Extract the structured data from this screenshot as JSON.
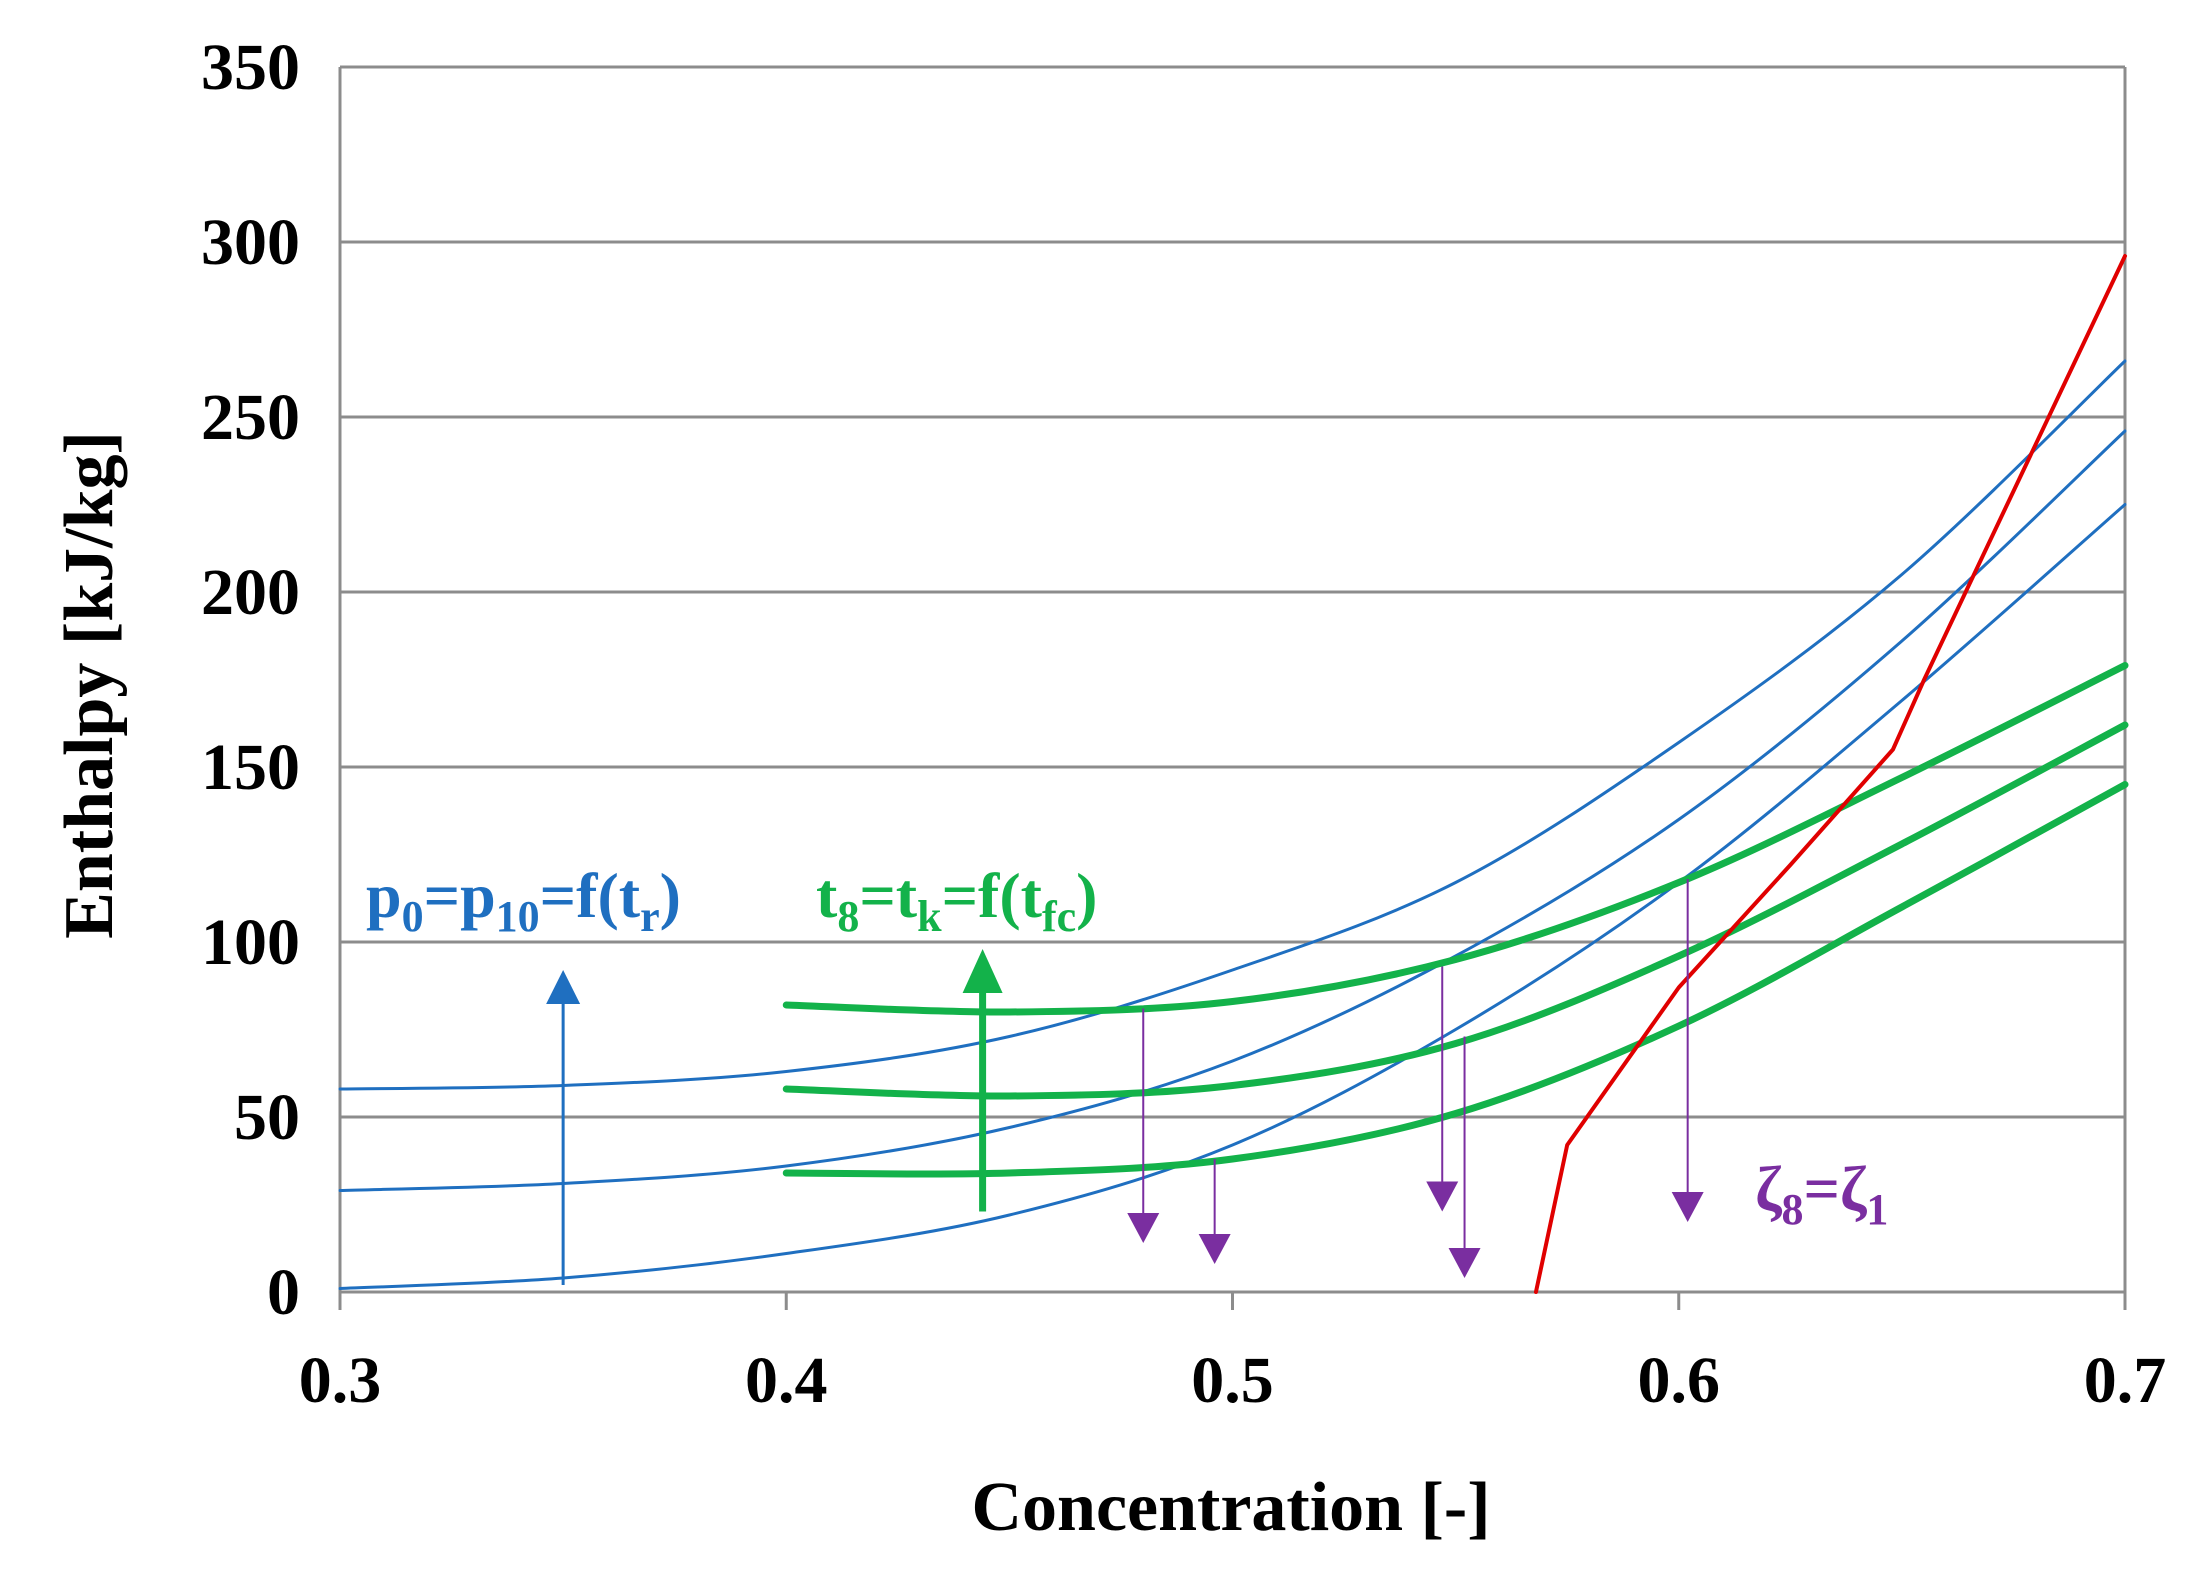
{
  "chart_data": {
    "type": "line",
    "title": "",
    "xlabel": "Concentration [-]",
    "ylabel": "Enthalpy [kJ/kg]",
    "xlim": [
      0.3,
      0.7
    ],
    "ylim": [
      0,
      350
    ],
    "x_ticks": [
      {
        "value": 0.3,
        "label": "0.3"
      },
      {
        "value": 0.4,
        "label": "0.4"
      },
      {
        "value": 0.5,
        "label": "0.5"
      },
      {
        "value": 0.6,
        "label": "0.6"
      },
      {
        "value": 0.7,
        "label": "0.7"
      }
    ],
    "y_ticks": [
      {
        "value": 0,
        "label": "0"
      },
      {
        "value": 50,
        "label": "50"
      },
      {
        "value": 100,
        "label": "100"
      },
      {
        "value": 150,
        "label": "150"
      },
      {
        "value": 200,
        "label": "200"
      },
      {
        "value": 250,
        "label": "250"
      },
      {
        "value": 300,
        "label": "300"
      },
      {
        "value": 350,
        "label": "350"
      }
    ],
    "grid": "horizontal",
    "colors": {
      "blue": "#1f6fc0",
      "green": "#13b24a",
      "red": "#e00000",
      "purple": "#7a2ea0",
      "grid": "#8c8c8c"
    },
    "series": [
      {
        "name": "blue-1",
        "color": "#1f6fc0",
        "width": 3,
        "x": [
          0.3,
          0.35,
          0.4,
          0.45,
          0.5,
          0.55,
          0.6,
          0.65,
          0.7
        ],
        "y": [
          58,
          59,
          63,
          73,
          92,
          117,
          157,
          205,
          266
        ]
      },
      {
        "name": "blue-2",
        "color": "#1f6fc0",
        "width": 3,
        "x": [
          0.3,
          0.35,
          0.4,
          0.45,
          0.5,
          0.55,
          0.6,
          0.65,
          0.7
        ],
        "y": [
          29,
          31,
          36,
          47,
          66,
          96,
          135,
          186,
          246
        ]
      },
      {
        "name": "blue-3",
        "color": "#1f6fc0",
        "width": 3,
        "x": [
          0.3,
          0.35,
          0.4,
          0.45,
          0.5,
          0.55,
          0.6,
          0.65,
          0.7
        ],
        "y": [
          1,
          4,
          11,
          22,
          42,
          75,
          117,
          169,
          225
        ]
      },
      {
        "name": "green-1",
        "color": "#13b24a",
        "width": 7,
        "x": [
          0.4,
          0.45,
          0.5,
          0.55,
          0.6,
          0.65,
          0.7
        ],
        "y": [
          82,
          80,
          83,
          95,
          117,
          147,
          179
        ]
      },
      {
        "name": "green-2",
        "color": "#13b24a",
        "width": 7,
        "x": [
          0.4,
          0.45,
          0.5,
          0.55,
          0.6,
          0.65,
          0.7
        ],
        "y": [
          58,
          56,
          59,
          71,
          96,
          128,
          162
        ]
      },
      {
        "name": "green-3",
        "color": "#13b24a",
        "width": 7,
        "x": [
          0.4,
          0.45,
          0.5,
          0.55,
          0.6,
          0.65,
          0.7
        ],
        "y": [
          34,
          34,
          38,
          51,
          76,
          110,
          145
        ]
      },
      {
        "name": "red",
        "color": "#e00000",
        "width": 4,
        "x": [
          0.568,
          0.575,
          0.6,
          0.625,
          0.648,
          0.655,
          0.7
        ],
        "y": [
          0,
          42,
          87,
          122,
          155,
          175,
          296
        ]
      }
    ],
    "arrows": [
      {
        "name": "blue-pressure-arrow",
        "color": "#1f6fc0",
        "x": 0.35,
        "y_from": 2,
        "y_to": 92,
        "width": 3
      },
      {
        "name": "green-temperature-arrow",
        "color": "#13b24a",
        "x": 0.444,
        "y_from": 23,
        "y_to": 98,
        "width": 7
      },
      {
        "name": "purple-arrow-1",
        "color": "#7a2ea0",
        "x": 0.48,
        "y_from": 81,
        "y_to": 14,
        "width": 2
      },
      {
        "name": "purple-arrow-2",
        "color": "#7a2ea0",
        "x": 0.496,
        "y_from": 38,
        "y_to": 8,
        "width": 2
      },
      {
        "name": "purple-arrow-3",
        "color": "#7a2ea0",
        "x": 0.547,
        "y_from": 93,
        "y_to": 23,
        "width": 2
      },
      {
        "name": "purple-arrow-4",
        "color": "#7a2ea0",
        "x": 0.552,
        "y_from": 73,
        "y_to": 4,
        "width": 2
      },
      {
        "name": "purple-arrow-5",
        "color": "#7a2ea0",
        "x": 0.602,
        "y_from": 118,
        "y_to": 20,
        "width": 2
      }
    ],
    "annotations": {
      "pressure": {
        "p1": "p",
        "s1": "0",
        "p2": "=p",
        "s2": "10",
        "p3": "=f(t",
        "s3": "r",
        "p4": ")",
        "color": "#1f6fc0"
      },
      "temperature": {
        "p1": "t",
        "s1": "8",
        "p2": "=t",
        "s2": "k",
        "p3": "=f(t",
        "s3": "fc",
        "p4": ")",
        "color": "#13b24a"
      },
      "concentration": {
        "p1": "ζ",
        "s1": "8",
        "p2": "=ζ",
        "s2": "1",
        "color": "#7a2ea0"
      }
    }
  }
}
